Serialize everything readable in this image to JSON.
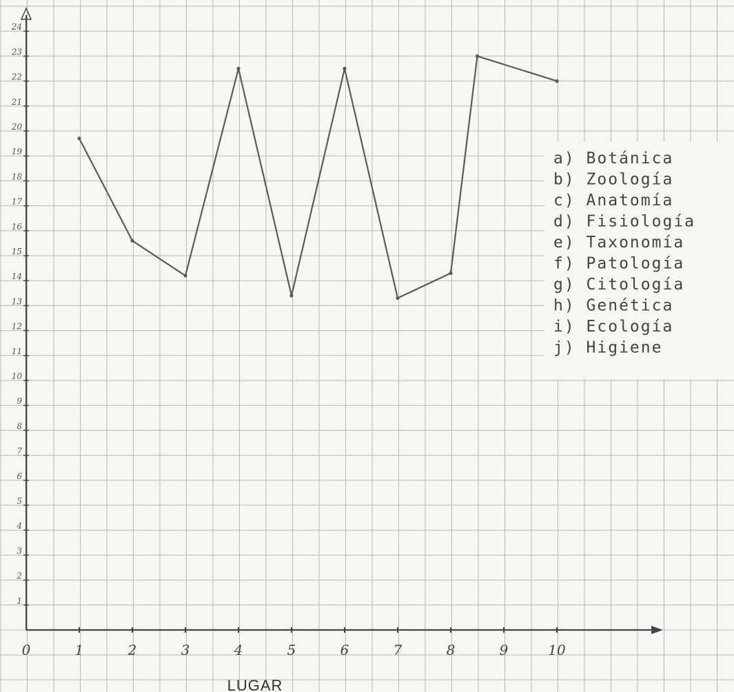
{
  "chart_data": {
    "type": "line",
    "title": "",
    "xlabel": "LUGAR",
    "ylabel": "",
    "x": [
      1,
      2,
      3,
      4,
      5,
      6,
      7,
      8,
      8.5,
      10
    ],
    "series": [
      {
        "values": [
          19.7,
          15.6,
          14.2,
          22.5,
          13.4,
          22.5,
          13.3,
          14.3,
          23.0,
          22.0
        ]
      }
    ],
    "xlim": [
      0,
      10
    ],
    "ylim": [
      0,
      24
    ],
    "x_ticks": [
      "0",
      "1",
      "2",
      "3",
      "4",
      "5",
      "6",
      "7",
      "8",
      "9",
      "10"
    ],
    "y_ticks": [
      "1",
      "2",
      "3",
      "4",
      "5",
      "6",
      "7",
      "8",
      "9",
      "10",
      "11",
      "12",
      "13",
      "14",
      "15",
      "16",
      "17",
      "18",
      "19",
      "20",
      "21",
      "22",
      "23",
      "24"
    ],
    "grid": true,
    "legend_placement": "right",
    "legend": [
      "a) Botánica",
      "b) Zoología",
      "c) Anatomía",
      "d) Fisiología",
      "e) Taxonomía",
      "f) Patología",
      "g) Citología",
      "h) Genética",
      "i) Ecología",
      "j) Higiene"
    ],
    "colors": {
      "line": "#5a5a5a",
      "grid": "#b9b9b3",
      "axis": "#444444",
      "paper": "#f7f6f2"
    }
  }
}
